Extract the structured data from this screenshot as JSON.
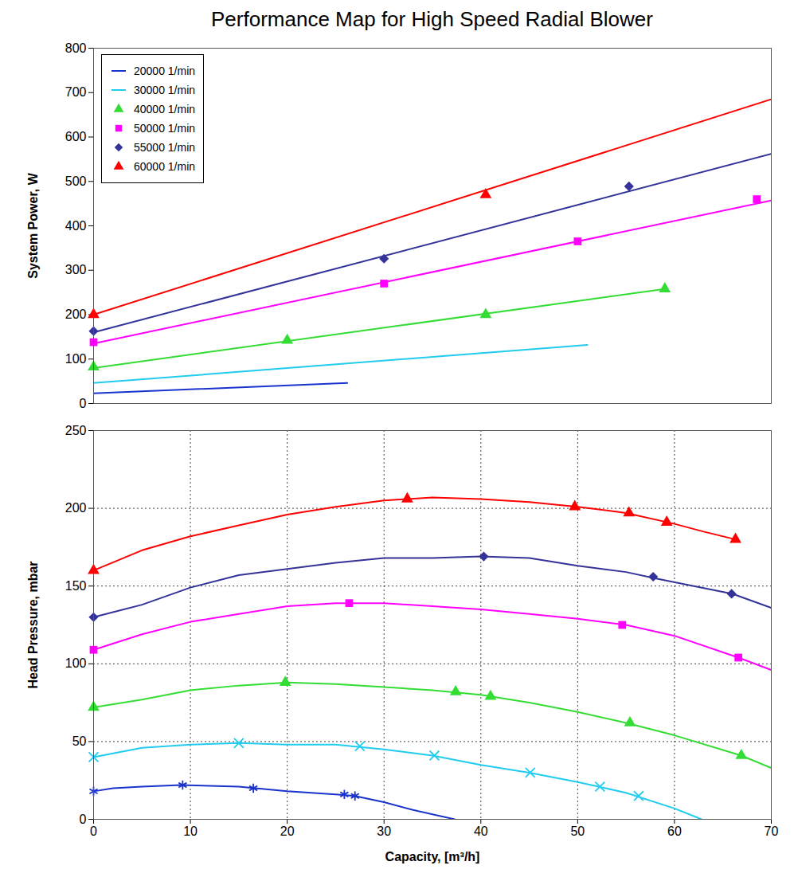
{
  "chart_data": [
    {
      "type": "line",
      "title": "Performance Map for High Speed Radial Blower",
      "y_label": "System Power, W",
      "xlim": [
        0,
        70
      ],
      "ylim": [
        0,
        800
      ],
      "yticks": [
        0,
        100,
        200,
        300,
        400,
        500,
        600,
        700,
        800
      ],
      "tick_labels": "y",
      "legend": "top-left",
      "series": [
        {
          "name": "20000 1/min",
          "color": "#1a33cc",
          "marker": "none",
          "x": [
            0,
            26.2
          ],
          "values": [
            23,
            46
          ]
        },
        {
          "name": "30000 1/min",
          "color": "#22ccee",
          "marker": "none",
          "x": [
            0,
            51
          ],
          "values": [
            46,
            132
          ]
        },
        {
          "name": "40000 1/min",
          "color": "#33dd33",
          "marker": "triangle",
          "x": [
            0,
            59
          ],
          "values": [
            80,
            258
          ],
          "points": {
            "x": [
              0,
              20,
              40.5,
              59
            ],
            "values": [
              82,
              142,
              200,
              258
            ]
          }
        },
        {
          "name": "50000 1/min",
          "color": "#ff00ff",
          "marker": "square",
          "x": [
            0,
            70
          ],
          "values": [
            135,
            457
          ],
          "points": {
            "x": [
              0,
              30,
              50,
              68.5
            ],
            "values": [
              138,
              270,
              365,
              460
            ]
          }
        },
        {
          "name": "55000 1/min",
          "color": "#333399",
          "marker": "diamond",
          "x": [
            0,
            70
          ],
          "values": [
            160,
            562
          ],
          "points": {
            "x": [
              0,
              30,
              55.3
            ],
            "values": [
              163,
              326,
              489
            ]
          }
        },
        {
          "name": "60000 1/min",
          "color": "#ff0000",
          "marker": "triangle",
          "x": [
            0,
            70
          ],
          "values": [
            200,
            685
          ],
          "points": {
            "x": [
              0,
              40.5
            ],
            "values": [
              200,
              470
            ]
          }
        }
      ]
    },
    {
      "type": "line",
      "x_label": "Capacity, [m³/h]",
      "y_label": "Head Pressure, mbar",
      "xlim": [
        0,
        70
      ],
      "ylim": [
        0,
        250
      ],
      "xticks": [
        0,
        10,
        20,
        30,
        40,
        50,
        60,
        70
      ],
      "yticks": [
        0,
        50,
        100,
        150,
        200,
        250
      ],
      "grid": true,
      "series": [
        {
          "name": "20000 1/min",
          "color": "#1a33cc",
          "marker": "asterisk",
          "x": [
            0,
            2,
            5,
            9,
            15,
            20,
            25,
            27,
            30,
            33,
            37.3
          ],
          "values": [
            18,
            20,
            21,
            22,
            21,
            18,
            16,
            15,
            11,
            6,
            0
          ],
          "points": {
            "x": [
              0,
              9.2,
              16.5,
              25.9,
              27
            ],
            "values": [
              18,
              22,
              20,
              16,
              15
            ]
          }
        },
        {
          "name": "30000 1/min",
          "color": "#22ccee",
          "marker": "x",
          "x": [
            0,
            5,
            10,
            15,
            20,
            25,
            30,
            35,
            40,
            45,
            50,
            55,
            60,
            62.8
          ],
          "values": [
            40,
            46,
            48,
            49,
            48,
            48,
            45,
            41,
            35,
            30,
            24,
            17,
            7,
            0
          ],
          "points": {
            "x": [
              0,
              15,
              27.5,
              35.2,
              45.1,
              52.3,
              56.3
            ],
            "values": [
              40,
              49,
              47,
              41,
              30,
              21,
              15
            ]
          }
        },
        {
          "name": "40000 1/min",
          "color": "#33dd33",
          "marker": "triangle",
          "x": [
            0,
            5,
            10,
            15,
            20,
            25,
            30,
            35,
            40,
            45,
            50,
            55,
            60,
            66.9,
            70
          ],
          "values": [
            72,
            77,
            83,
            86,
            88,
            87,
            85,
            83,
            80,
            75,
            69,
            62,
            54,
            41,
            33
          ],
          "points": {
            "x": [
              0,
              19.8,
              37.4,
              41,
              55.4,
              66.9
            ],
            "values": [
              72,
              88,
              82,
              79,
              62,
              41
            ]
          }
        },
        {
          "name": "50000 1/min",
          "color": "#ff00ff",
          "marker": "square",
          "x": [
            0,
            5,
            10,
            15,
            20,
            25,
            30,
            35,
            40,
            45,
            50,
            55,
            60,
            66.6,
            70
          ],
          "values": [
            109,
            119,
            127,
            132,
            137,
            139,
            139,
            137,
            135,
            132,
            129,
            125,
            118,
            104,
            96
          ],
          "points": {
            "x": [
              0,
              26.4,
              54.6,
              66.6
            ],
            "values": [
              109,
              139,
              125,
              104
            ]
          }
        },
        {
          "name": "55000 1/min",
          "color": "#333399",
          "marker": "diamond",
          "x": [
            0,
            5,
            10,
            15,
            20,
            25,
            30,
            35,
            40,
            45,
            50,
            55,
            58,
            62,
            66,
            70
          ],
          "values": [
            130,
            138,
            149,
            157,
            161,
            165,
            168,
            168,
            169,
            168,
            163,
            159,
            155,
            150,
            145,
            136
          ],
          "points": {
            "x": [
              0,
              40.3,
              57.8,
              65.9
            ],
            "values": [
              130,
              169,
              156,
              145
            ]
          }
        },
        {
          "name": "60000 1/min",
          "color": "#ff0000",
          "marker": "triangle",
          "x": [
            0,
            5,
            10,
            15,
            20,
            25,
            30,
            35,
            40,
            45,
            50,
            55,
            60,
            63,
            66.3
          ],
          "values": [
            160,
            173,
            182,
            189,
            196,
            201,
            205,
            207,
            206,
            204,
            201,
            197,
            190,
            185,
            180
          ],
          "points": {
            "x": [
              0,
              32.4,
              49.7,
              55.3,
              59.2,
              66.3
            ],
            "values": [
              160,
              206,
              201,
              197,
              191,
              180
            ]
          }
        }
      ]
    }
  ]
}
